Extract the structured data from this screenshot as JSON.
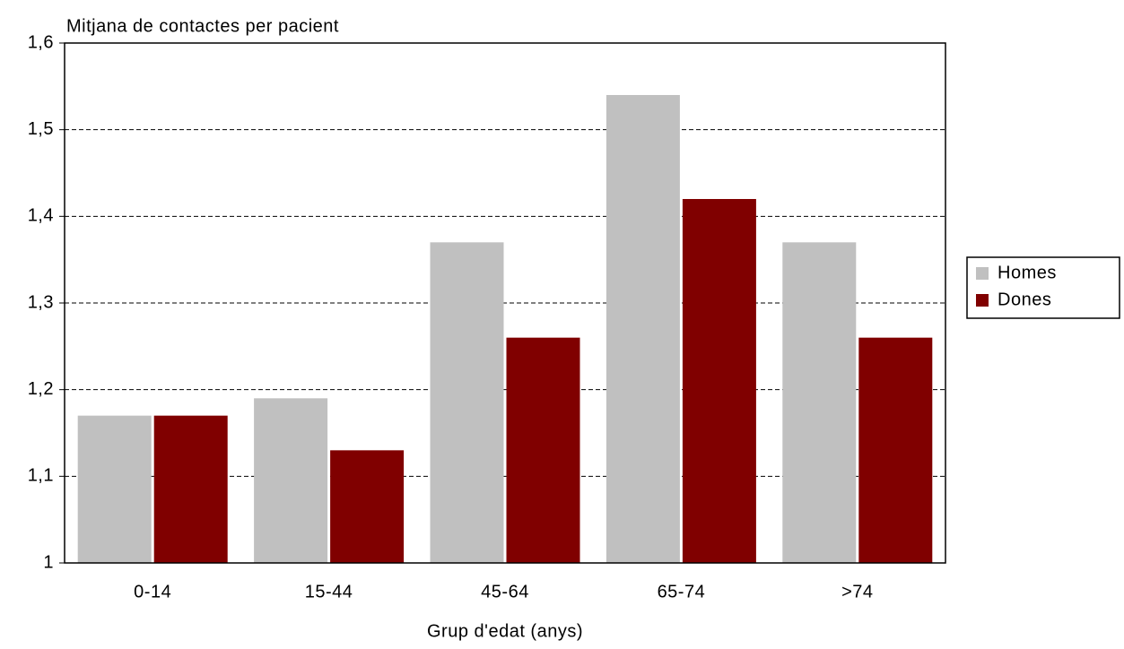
{
  "chart_data": {
    "type": "bar",
    "title": "Mitjana de contactes per pacient",
    "x_label": "Grup d'edat (anys)",
    "categories": [
      "0-14",
      "15-44",
      "45-64",
      "65-74",
      ">74"
    ],
    "series": [
      {
        "name": "Homes",
        "color": "#c0c0c0",
        "values": [
          1.17,
          1.19,
          1.37,
          1.54,
          1.37
        ]
      },
      {
        "name": "Dones",
        "color": "#800000",
        "values": [
          1.17,
          1.13,
          1.26,
          1.42,
          1.26
        ]
      }
    ],
    "ylim": [
      1,
      1.6
    ],
    "yticks": [
      1,
      {
        "value": 1.1,
        "label": "1,1"
      },
      {
        "value": 1.2,
        "label": "1,2"
      },
      {
        "value": 1.3,
        "label": "1,3"
      },
      {
        "value": 1.4,
        "label": "1,4"
      },
      {
        "value": 1.5,
        "label": "1,5"
      },
      {
        "value": 1.6,
        "label": "1,6"
      }
    ],
    "grid": true,
    "legend": "right"
  }
}
